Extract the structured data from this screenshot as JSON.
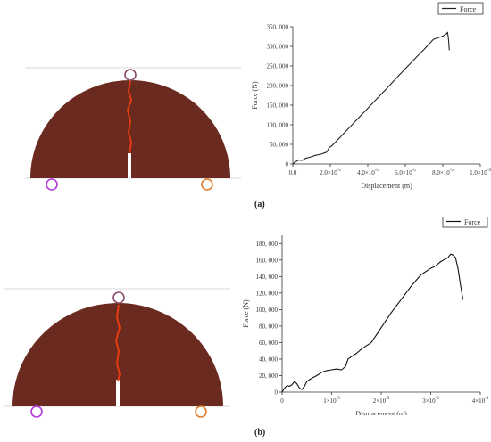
{
  "panels": [
    {
      "label": "(a)",
      "sample_colors": {
        "body": "#6b2a20",
        "crack": "#e63a10",
        "top_support": "#8a4a6a",
        "left_support": "#b43ad8",
        "right_support": "#e07a2a",
        "guide_line": "#d8d8d8"
      }
    },
    {
      "label": "(b)",
      "sample_colors": {
        "body": "#6b2a20",
        "crack": "#e63a10",
        "top_support": "#8a4a6a",
        "left_support": "#b43ad8",
        "right_support": "#e07a2a",
        "guide_line": "#d8d8d8"
      }
    }
  ],
  "chart_data": [
    {
      "type": "line",
      "xlabel": "Displacement (m)",
      "ylabel": "Force (N)",
      "xlim": [
        0,
        0.0001
      ],
      "ylim": [
        0,
        350000
      ],
      "x_ticks": [
        0,
        2e-05,
        4e-05,
        6e-05,
        8e-05,
        0.0001
      ],
      "x_tick_labels": [
        {
          "base": "0.0",
          "exp": ""
        },
        {
          "base": "2.0×10",
          "exp": "-5"
        },
        {
          "base": "4.0×10",
          "exp": "-5"
        },
        {
          "base": "6.0×10",
          "exp": "-5"
        },
        {
          "base": "8.0×10",
          "exp": "-5"
        },
        {
          "base": "1.0×10",
          "exp": "-4"
        }
      ],
      "y_ticks": [
        0,
        50000,
        100000,
        150000,
        200000,
        250000,
        300000,
        350000
      ],
      "y_tick_labels": [
        "0",
        "50, 000",
        "100, 000",
        "150, 000",
        "200, 000",
        "250, 000",
        "300, 000",
        "350, 000"
      ],
      "legend_position": "top-right",
      "line_color": "#222222",
      "series": [
        {
          "name": "Force",
          "x": [
            0,
            1e-06,
            2e-06,
            3e-06,
            5e-06,
            7e-06,
            9e-06,
            1.2e-05,
            1.5e-05,
            1.8e-05,
            1.95e-05,
            2.1e-05,
            2.4e-05,
            2.8e-05,
            3.2e-05,
            3.6e-05,
            4e-05,
            4.5e-05,
            5e-05,
            5.5e-05,
            6e-05,
            6.5e-05,
            7e-05,
            7.5e-05,
            8e-05,
            8.2e-05,
            8.25e-05,
            8.3e-05,
            8.35e-05
          ],
          "y": [
            0,
            4000,
            7000,
            10000,
            9000,
            15000,
            17000,
            22000,
            25000,
            30000,
            42000,
            47000,
            62000,
            82000,
            102000,
            122000,
            142000,
            167000,
            192000,
            218000,
            243000,
            268000,
            292000,
            318000,
            326000,
            332000,
            336000,
            320000,
            290000
          ]
        }
      ]
    },
    {
      "type": "line",
      "xlabel": "Displacement (m)",
      "ylabel": "Force (N)",
      "xlim": [
        0,
        4e-05
      ],
      "ylim": [
        0,
        190000
      ],
      "x_ticks": [
        0,
        1e-05,
        2e-05,
        3e-05,
        4e-05
      ],
      "x_tick_labels": [
        {
          "base": "0",
          "exp": ""
        },
        {
          "base": "1×10",
          "exp": "-5"
        },
        {
          "base": "2×10",
          "exp": "-5"
        },
        {
          "base": "3×10",
          "exp": "-5"
        },
        {
          "base": "4×10",
          "exp": "-5"
        }
      ],
      "y_ticks": [
        0,
        20000,
        40000,
        60000,
        80000,
        100000,
        120000,
        140000,
        160000,
        180000
      ],
      "y_tick_labels": [
        "0",
        "20, 000",
        "40, 000",
        "60, 000",
        "80, 000",
        "100, 000",
        "120, 000",
        "140, 000",
        "160, 000",
        "180, 000"
      ],
      "legend_position": "top-right",
      "line_color": "#111111",
      "series": [
        {
          "name": "Force",
          "x": [
            0,
            5e-07,
            1e-06,
            1.5e-06,
            2e-06,
            2.5e-06,
            3e-06,
            3.5e-06,
            4e-06,
            4.5e-06,
            5e-06,
            6e-06,
            7e-06,
            8e-06,
            9e-06,
            1e-05,
            1.1e-05,
            1.2e-05,
            1.28e-05,
            1.33e-05,
            1.4e-05,
            1.5e-05,
            1.6e-05,
            1.7e-05,
            1.8e-05,
            2e-05,
            2.2e-05,
            2.4e-05,
            2.6e-05,
            2.8e-05,
            3e-05,
            3.1e-05,
            3.2e-05,
            3.35e-05,
            3.4e-05,
            3.45e-05,
            3.5e-05,
            3.55e-05,
            3.6e-05,
            3.65e-05
          ],
          "y": [
            0,
            5000,
            8000,
            7000,
            9000,
            13000,
            10000,
            5000,
            3000,
            7000,
            13000,
            17000,
            20000,
            24000,
            26000,
            27000,
            28000,
            27000,
            31000,
            40000,
            43000,
            47000,
            52000,
            56000,
            60000,
            78000,
            96000,
            112000,
            128000,
            142000,
            150000,
            153000,
            158000,
            163000,
            167000,
            166000,
            163000,
            150000,
            130000,
            112000
          ]
        }
      ]
    }
  ]
}
